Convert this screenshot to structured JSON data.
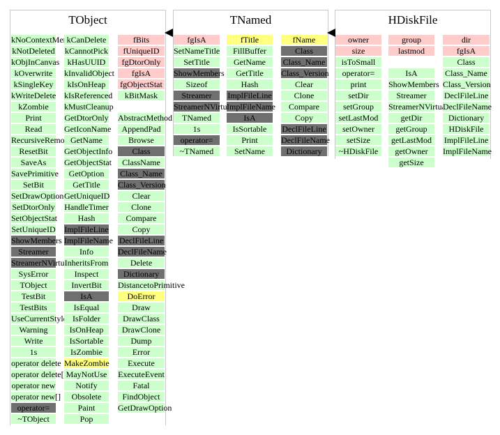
{
  "classes": [
    {
      "title": "TObject",
      "columns": [
        {
          "cells": [
            {
              "t": "kNoContextMenu",
              "c": "green"
            },
            {
              "t": "kNotDeleted",
              "c": "green"
            },
            {
              "t": "kObjInCanvas",
              "c": "green"
            },
            {
              "t": "kOverwrite",
              "c": "green"
            },
            {
              "t": "kSingleKey",
              "c": "green"
            },
            {
              "t": "kWriteDelete",
              "c": "green"
            },
            {
              "t": "kZombie",
              "c": "green"
            },
            {
              "t": "Print",
              "c": "green"
            },
            {
              "t": "Read",
              "c": "green"
            },
            {
              "t": "RecursiveRemove",
              "c": "green"
            },
            {
              "t": "ResetBit",
              "c": "green"
            },
            {
              "t": "SaveAs",
              "c": "green"
            },
            {
              "t": "SavePrimitive",
              "c": "green"
            },
            {
              "t": "SetBit",
              "c": "green"
            },
            {
              "t": "SetDrawOption",
              "c": "green"
            },
            {
              "t": "SetDtorOnly",
              "c": "green"
            },
            {
              "t": "SetObjectStat",
              "c": "green"
            },
            {
              "t": "SetUniqueID",
              "c": "green"
            },
            {
              "t": "ShowMembers",
              "c": "gray"
            },
            {
              "t": "Streamer",
              "c": "gray"
            },
            {
              "t": "StreamerNVirtual",
              "c": "gray"
            },
            {
              "t": "SysError",
              "c": "green"
            },
            {
              "t": "TObject",
              "c": "green"
            },
            {
              "t": "TestBit",
              "c": "green"
            },
            {
              "t": "TestBits",
              "c": "green"
            },
            {
              "t": "UseCurrentStyle",
              "c": "green"
            },
            {
              "t": "Warning",
              "c": "green"
            },
            {
              "t": "Write",
              "c": "green"
            },
            {
              "t": "1s",
              "c": "green"
            },
            {
              "t": "operator delete",
              "c": "green"
            },
            {
              "t": "operator delete[]",
              "c": "green"
            },
            {
              "t": "operator new",
              "c": "green"
            },
            {
              "t": "operator new[]",
              "c": "green"
            },
            {
              "t": "operator=",
              "c": "gray"
            },
            {
              "t": "~TObject",
              "c": "green"
            }
          ]
        },
        {
          "cells": [
            {
              "t": "kCanDelete",
              "c": "green"
            },
            {
              "t": "kCannotPick",
              "c": "green"
            },
            {
              "t": "kHasUUID",
              "c": "green"
            },
            {
              "t": "kInvalidObject",
              "c": "green"
            },
            {
              "t": "kIsOnHeap",
              "c": "green"
            },
            {
              "t": "kIsReferenced",
              "c": "green"
            },
            {
              "t": "kMustCleanup",
              "c": "green"
            },
            {
              "t": "GetDtorOnly",
              "c": "green"
            },
            {
              "t": "GetIconName",
              "c": "green"
            },
            {
              "t": "GetName",
              "c": "green"
            },
            {
              "t": "GetObjectInfo",
              "c": "green"
            },
            {
              "t": "GetObjectStat",
              "c": "green"
            },
            {
              "t": "GetOption",
              "c": "green"
            },
            {
              "t": "GetTitle",
              "c": "green"
            },
            {
              "t": "GetUniqueID",
              "c": "green"
            },
            {
              "t": "HandleTimer",
              "c": "green"
            },
            {
              "t": "Hash",
              "c": "green"
            },
            {
              "t": "ImplFileLine",
              "c": "gray"
            },
            {
              "t": "ImplFileName",
              "c": "gray"
            },
            {
              "t": "Info",
              "c": "green"
            },
            {
              "t": "InheritsFrom",
              "c": "green"
            },
            {
              "t": "Inspect",
              "c": "green"
            },
            {
              "t": "InvertBit",
              "c": "green"
            },
            {
              "t": "IsA",
              "c": "gray"
            },
            {
              "t": "IsEqual",
              "c": "green"
            },
            {
              "t": "IsFolder",
              "c": "green"
            },
            {
              "t": "IsOnHeap",
              "c": "green"
            },
            {
              "t": "IsSortable",
              "c": "green"
            },
            {
              "t": "IsZombie",
              "c": "green"
            },
            {
              "t": "MakeZombie",
              "c": "yellow"
            },
            {
              "t": "MayNotUse",
              "c": "green"
            },
            {
              "t": "Notify",
              "c": "green"
            },
            {
              "t": "Obsolete",
              "c": "green"
            },
            {
              "t": "Paint",
              "c": "green"
            },
            {
              "t": "Pop",
              "c": "green"
            }
          ]
        },
        {
          "cells": [
            {
              "t": "fBits",
              "c": "pink"
            },
            {
              "t": "fUniqueID",
              "c": "pink"
            },
            {
              "t": "fgDtorOnly",
              "c": "pink"
            },
            {
              "t": "fgIsA",
              "c": "pink"
            },
            {
              "t": "fgObjectStat",
              "c": "pink"
            },
            {
              "t": "kBitMask",
              "c": "green"
            },
            {
              "t": "",
              "c": "none"
            },
            {
              "t": "AbstractMethod",
              "c": "green"
            },
            {
              "t": "AppendPad",
              "c": "green"
            },
            {
              "t": "Browse",
              "c": "green"
            },
            {
              "t": "Class",
              "c": "gray"
            },
            {
              "t": "ClassName",
              "c": "green"
            },
            {
              "t": "Class_Name",
              "c": "gray"
            },
            {
              "t": "Class_Version",
              "c": "gray"
            },
            {
              "t": "Clear",
              "c": "green"
            },
            {
              "t": "Clone",
              "c": "green"
            },
            {
              "t": "Compare",
              "c": "green"
            },
            {
              "t": "Copy",
              "c": "green"
            },
            {
              "t": "DeclFileLine",
              "c": "gray"
            },
            {
              "t": "DeclFileName",
              "c": "gray"
            },
            {
              "t": "Delete",
              "c": "green"
            },
            {
              "t": "Dictionary",
              "c": "gray"
            },
            {
              "t": "DistancetoPrimitive",
              "c": "green"
            },
            {
              "t": "DoError",
              "c": "yellow"
            },
            {
              "t": "Draw",
              "c": "green"
            },
            {
              "t": "DrawClass",
              "c": "green"
            },
            {
              "t": "DrawClone",
              "c": "green"
            },
            {
              "t": "Dump",
              "c": "green"
            },
            {
              "t": "Error",
              "c": "green"
            },
            {
              "t": "Execute",
              "c": "green"
            },
            {
              "t": "ExecuteEvent",
              "c": "green"
            },
            {
              "t": "Fatal",
              "c": "green"
            },
            {
              "t": "FindObject",
              "c": "green"
            },
            {
              "t": "GetDrawOption",
              "c": "green"
            }
          ]
        }
      ]
    },
    {
      "title": "TNamed",
      "columns": [
        {
          "cells": [
            {
              "t": "fgIsA",
              "c": "pink"
            },
            {
              "t": "SetNameTitle",
              "c": "green"
            },
            {
              "t": "SetTitle",
              "c": "green"
            },
            {
              "t": "ShowMembers",
              "c": "gray"
            },
            {
              "t": "Sizeof",
              "c": "green"
            },
            {
              "t": "Streamer",
              "c": "gray"
            },
            {
              "t": "StreamerNVirtual",
              "c": "gray"
            },
            {
              "t": "TNamed",
              "c": "green"
            },
            {
              "t": "1s",
              "c": "green"
            },
            {
              "t": "operator=",
              "c": "gray"
            },
            {
              "t": "~TNamed",
              "c": "green"
            }
          ]
        },
        {
          "cells": [
            {
              "t": "fTitle",
              "c": "yellow"
            },
            {
              "t": "FillBuffer",
              "c": "green"
            },
            {
              "t": "GetName",
              "c": "green"
            },
            {
              "t": "GetTitle",
              "c": "green"
            },
            {
              "t": "Hash",
              "c": "green"
            },
            {
              "t": "ImplFileLine",
              "c": "gray"
            },
            {
              "t": "ImplFileName",
              "c": "gray"
            },
            {
              "t": "IsA",
              "c": "gray"
            },
            {
              "t": "IsSortable",
              "c": "green"
            },
            {
              "t": "Print",
              "c": "green"
            },
            {
              "t": "SetName",
              "c": "green"
            }
          ]
        },
        {
          "cells": [
            {
              "t": "fName",
              "c": "yellow"
            },
            {
              "t": "Class",
              "c": "gray"
            },
            {
              "t": "Class_Name",
              "c": "gray"
            },
            {
              "t": "Class_Version",
              "c": "gray"
            },
            {
              "t": "Clear",
              "c": "green"
            },
            {
              "t": "Clone",
              "c": "green"
            },
            {
              "t": "Compare",
              "c": "green"
            },
            {
              "t": "Copy",
              "c": "green"
            },
            {
              "t": "DeclFileLine",
              "c": "gray"
            },
            {
              "t": "DeclFileName",
              "c": "gray"
            },
            {
              "t": "Dictionary",
              "c": "gray"
            }
          ]
        }
      ]
    },
    {
      "title": "HDiskFile",
      "columns": [
        {
          "cells": [
            {
              "t": "owner",
              "c": "pink"
            },
            {
              "t": "size",
              "c": "pink"
            },
            {
              "t": "isToSmall",
              "c": "green"
            },
            {
              "t": "operator=",
              "c": "green"
            },
            {
              "t": "print",
              "c": "green"
            },
            {
              "t": "setDir",
              "c": "green"
            },
            {
              "t": "setGroup",
              "c": "green"
            },
            {
              "t": "setLastMod",
              "c": "green"
            },
            {
              "t": "setOwner",
              "c": "green"
            },
            {
              "t": "setSize",
              "c": "green"
            },
            {
              "t": "~HDiskFile",
              "c": "green"
            }
          ]
        },
        {
          "cells": [
            {
              "t": "group",
              "c": "pink"
            },
            {
              "t": "lastmod",
              "c": "pink"
            },
            {
              "t": "",
              "c": "none"
            },
            {
              "t": "IsA",
              "c": "green"
            },
            {
              "t": "ShowMembers",
              "c": "green"
            },
            {
              "t": "Streamer",
              "c": "green"
            },
            {
              "t": "StreamerNVirtual",
              "c": "green"
            },
            {
              "t": "getDir",
              "c": "green"
            },
            {
              "t": "getGroup",
              "c": "green"
            },
            {
              "t": "getLastMod",
              "c": "green"
            },
            {
              "t": "getOwner",
              "c": "green"
            },
            {
              "t": "getSize",
              "c": "green"
            }
          ]
        },
        {
          "cells": [
            {
              "t": "dir",
              "c": "pink"
            },
            {
              "t": "fgIsA",
              "c": "pink"
            },
            {
              "t": "Class",
              "c": "green"
            },
            {
              "t": "Class_Name",
              "c": "green"
            },
            {
              "t": "Class_Version",
              "c": "green"
            },
            {
              "t": "DeclFileLine",
              "c": "green"
            },
            {
              "t": "DeclFileName",
              "c": "green"
            },
            {
              "t": "Dictionary",
              "c": "green"
            },
            {
              "t": "HDiskFile",
              "c": "green"
            },
            {
              "t": "ImplFileLine",
              "c": "green"
            },
            {
              "t": "ImplFileName",
              "c": "green"
            }
          ]
        }
      ]
    }
  ],
  "inheritance": [
    {
      "from": "TNamed",
      "to": "TObject"
    },
    {
      "from": "HDiskFile",
      "to": "TNamed"
    }
  ]
}
